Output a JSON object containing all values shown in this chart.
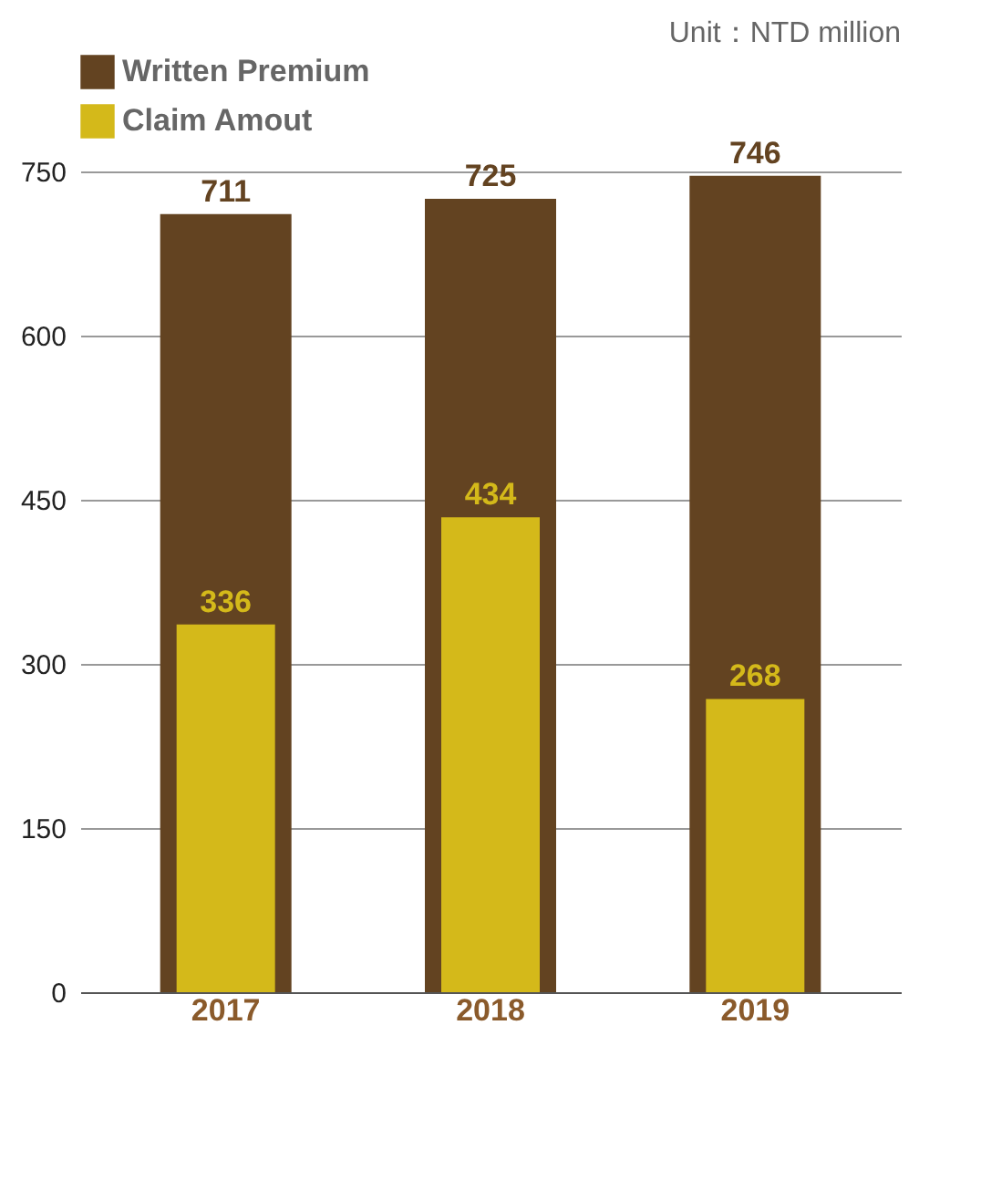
{
  "chart_data": {
    "type": "bar",
    "categories": [
      "2017",
      "2018",
      "2019"
    ],
    "series": [
      {
        "name": "Written Premium",
        "color": "#634321",
        "values": [
          711,
          725,
          746
        ]
      },
      {
        "name": "Claim Amout",
        "color": "#d4b91a",
        "values": [
          336,
          434,
          268
        ]
      }
    ],
    "ylim": [
      0,
      750
    ],
    "yticks": [
      0,
      150,
      300,
      450,
      600,
      750
    ],
    "grid": "y",
    "legend": "top left",
    "data_labels": true,
    "annotations": [
      "Unit：NTD million"
    ]
  }
}
